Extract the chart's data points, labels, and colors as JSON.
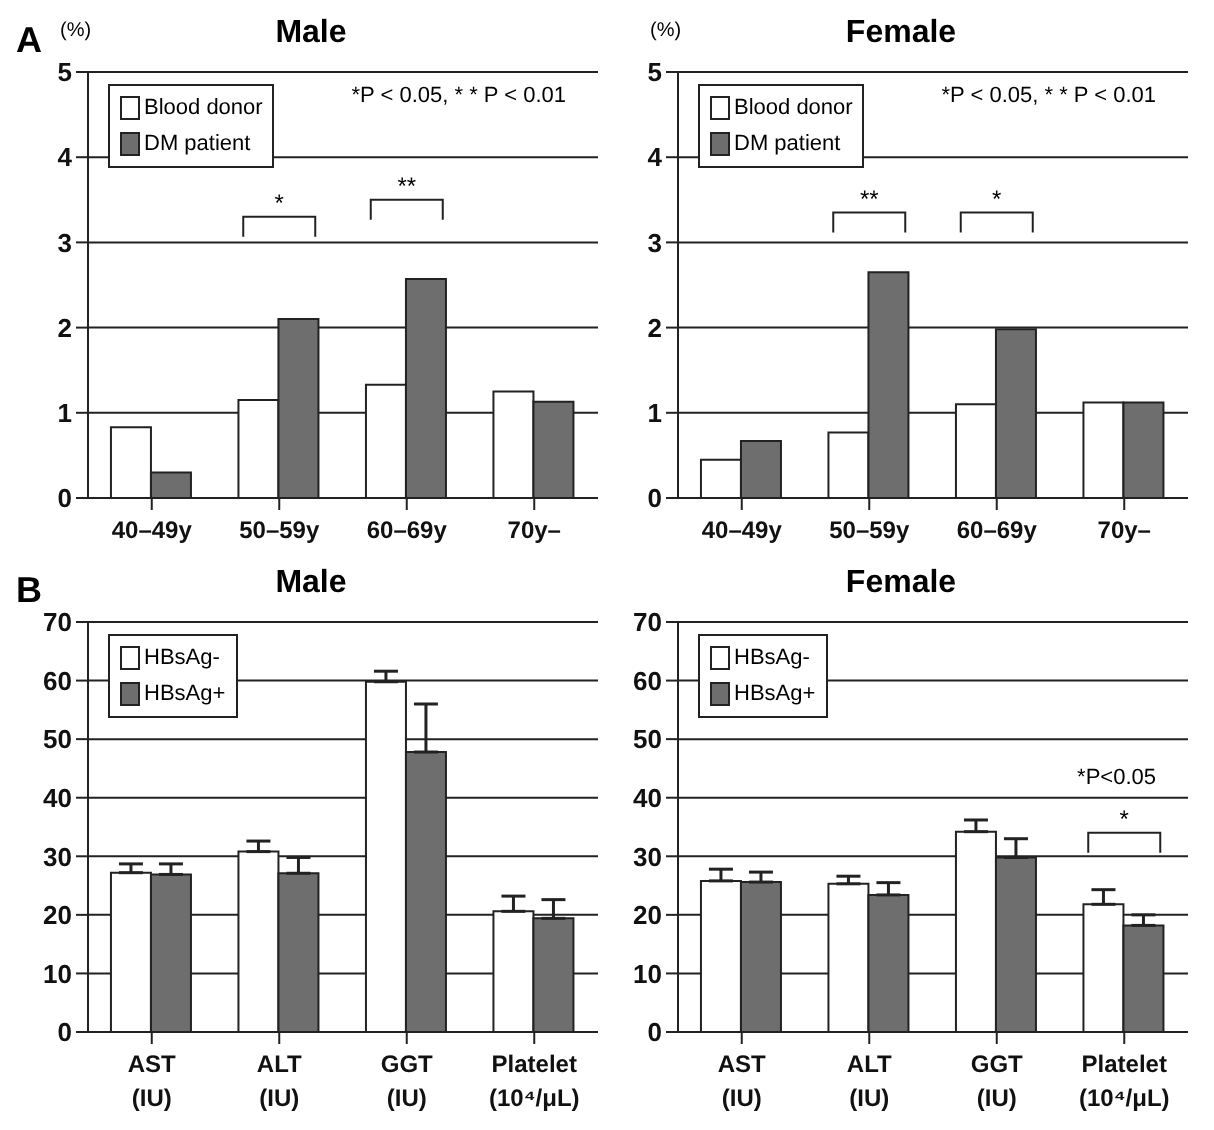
{
  "chart_data": [
    {
      "type": "bar",
      "title": "Male",
      "ylabel": "(%)",
      "categories": [
        "40–49y",
        "50–59y",
        "60–69y",
        "70y–"
      ],
      "series": [
        {
          "name": "Blood donor",
          "color": "#ffffff",
          "values": [
            0.83,
            1.15,
            1.33,
            1.25
          ]
        },
        {
          "name": "DM patient",
          "color": "#6e6e6e",
          "values": [
            0.3,
            2.1,
            2.57,
            1.13
          ]
        }
      ],
      "ylim": [
        0,
        5
      ],
      "yticks": [
        0,
        1,
        2,
        3,
        4,
        5
      ],
      "grid": "y",
      "legend": "top left",
      "annotations": [
        "A",
        "*P < 0.05,  * * P < 0.01",
        "*",
        "**"
      ]
    },
    {
      "type": "bar",
      "title": "Female",
      "ylabel": "(%)",
      "categories": [
        "40–49y",
        "50–59y",
        "60–69y",
        "70y–"
      ],
      "series": [
        {
          "name": "Blood donor",
          "color": "#ffffff",
          "values": [
            0.45,
            0.77,
            1.1,
            1.12
          ]
        },
        {
          "name": "DM patient",
          "color": "#6e6e6e",
          "values": [
            0.67,
            2.65,
            1.98,
            1.12
          ]
        }
      ],
      "ylim": [
        0,
        5
      ],
      "yticks": [
        0,
        1,
        2,
        3,
        4,
        5
      ],
      "grid": "y",
      "legend": "top left",
      "annotations": [
        "*P < 0.05,  * * P < 0.01",
        "**",
        "*"
      ]
    },
    {
      "type": "bar",
      "title": "Male",
      "categories": [
        "AST (IU)",
        "ALT (IU)",
        "GGT (IU)",
        "Platelet (10⁴/μL)"
      ],
      "series": [
        {
          "name": "HBsAg-",
          "color": "#ffffff",
          "values": [
            27.2,
            30.8,
            59.8,
            20.6
          ],
          "errors": [
            [
              27.2,
              28.7
            ],
            [
              30.8,
              32.6
            ],
            [
              59.8,
              61.6
            ],
            [
              20.6,
              23.2
            ]
          ]
        },
        {
          "name": "HBsAg+",
          "color": "#6e6e6e",
          "values": [
            26.9,
            27.1,
            47.8,
            19.4
          ],
          "errors": [
            [
              26.9,
              28.7
            ],
            [
              27.1,
              29.8
            ],
            [
              47.8,
              56
            ],
            [
              19.4,
              22.6
            ]
          ]
        }
      ],
      "ylim": [
        0,
        70
      ],
      "yticks": [
        0,
        10,
        20,
        30,
        40,
        50,
        60,
        70
      ],
      "grid": "y",
      "legend": "top left",
      "annotations": [
        "B"
      ]
    },
    {
      "type": "bar",
      "title": "Female",
      "categories": [
        "AST (IU)",
        "ALT (IU)",
        "GGT (IU)",
        "Platelet (10⁴/μL)"
      ],
      "series": [
        {
          "name": "HBsAg-",
          "color": "#ffffff",
          "values": [
            25.8,
            25.3,
            34.2,
            21.8
          ],
          "errors": [
            [
              25.8,
              27.8
            ],
            [
              25.3,
              26.6
            ],
            [
              34.2,
              36.2
            ],
            [
              21.8,
              24.3
            ]
          ]
        },
        {
          "name": "HBsAg+",
          "color": "#6e6e6e",
          "values": [
            25.6,
            23.4,
            29.8,
            18.2
          ],
          "errors": [
            [
              25.6,
              27.3
            ],
            [
              23.4,
              25.5
            ],
            [
              29.8,
              33
            ],
            [
              18.2,
              20
            ]
          ]
        }
      ],
      "ylim": [
        0,
        70
      ],
      "yticks": [
        0,
        10,
        20,
        30,
        40,
        50,
        60,
        70
      ],
      "grid": "y",
      "legend": "top left",
      "annotations": [
        "*P<0.05",
        "*"
      ]
    }
  ]
}
